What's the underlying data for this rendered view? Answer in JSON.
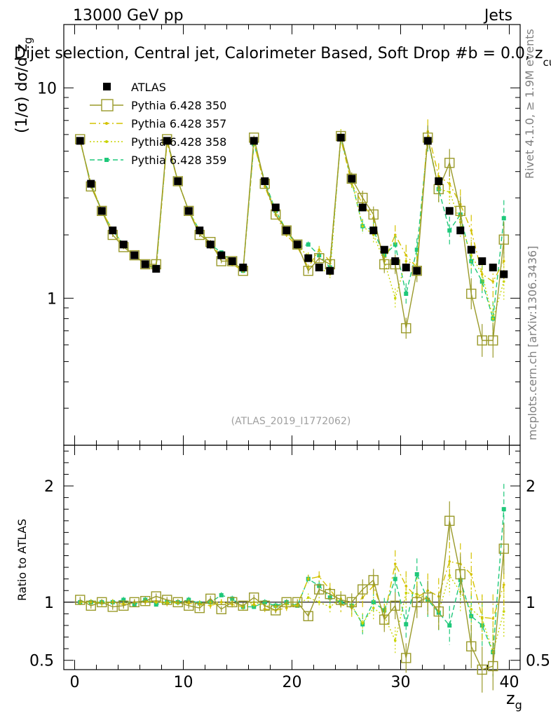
{
  "header": {
    "beam": "13000 GeV pp",
    "category": "Jets",
    "title": "Dijet selection, Central jet, Calorimeter Based, Soft Drop #b = 0.0, z",
    "title_sub": "cut",
    "title_tail": " =",
    "side_rivet": "Rivet 4.1.0, ≥ 1.9M events",
    "side_mcplots": "mcplots.cern.ch [arXiv:1306.3436]",
    "watermark": "(ATLAS_2019_I1772062)"
  },
  "axes": {
    "ylabel_main": "(1/σ) dσ/d z",
    "ylabel_main_sub": "g",
    "ylabel_ratio": "Ratio to ATLAS",
    "xlabel": "z",
    "xlabel_sub": "g"
  },
  "legend": {
    "items": [
      {
        "label": "ATLAS",
        "color": "#000000"
      },
      {
        "label": "Pythia 6.428 350",
        "color": "#9a9a2a"
      },
      {
        "label": "Pythia 6.428 357",
        "color": "#d4c200"
      },
      {
        "label": "Pythia 6.428 358",
        "color": "#c8d400"
      },
      {
        "label": "Pythia 6.428 359",
        "color": "#1ec87a"
      }
    ]
  },
  "chart_data": {
    "type": "scatter",
    "xlim": [
      -1,
      41
    ],
    "main_ylim_log": [
      0.2,
      20
    ],
    "ratio_ylim": [
      0.42,
      2.35
    ],
    "x_ticks": [
      0,
      10,
      20,
      30,
      40
    ],
    "main_y_ticks": [
      1,
      10
    ],
    "ratio_y_ticks": [
      0.5,
      1,
      2
    ],
    "x": [
      0.5,
      1.5,
      2.5,
      3.5,
      4.5,
      5.5,
      6.5,
      7.5,
      8.5,
      9.5,
      10.5,
      11.5,
      12.5,
      13.5,
      14.5,
      15.5,
      16.5,
      17.5,
      18.5,
      19.5,
      20.5,
      21.5,
      22.5,
      23.5,
      24.5,
      25.5,
      26.5,
      27.5,
      28.5,
      29.5,
      30.5,
      31.5,
      32.5,
      33.5,
      34.5,
      35.5,
      36.5,
      37.5,
      38.5,
      39.5
    ],
    "series": [
      {
        "name": "ATLAS",
        "color": "#000000",
        "values": [
          5.6,
          3.5,
          2.6,
          2.1,
          1.8,
          1.6,
          1.45,
          1.38,
          5.6,
          3.6,
          2.6,
          2.1,
          1.8,
          1.6,
          1.5,
          1.4,
          5.6,
          3.6,
          2.7,
          2.1,
          1.8,
          1.55,
          1.4,
          1.35,
          5.8,
          3.7,
          2.7,
          2.1,
          1.7,
          1.5,
          1.4,
          1.35,
          5.6,
          3.6,
          2.6,
          2.1,
          1.7,
          1.5,
          1.4,
          1.3
        ]
      },
      {
        "name": "Pythia 6.428 350",
        "color": "#9a9a2a",
        "values": [
          5.7,
          3.4,
          2.6,
          2.0,
          1.75,
          1.6,
          1.45,
          1.45,
          5.7,
          3.6,
          2.6,
          2.0,
          1.85,
          1.5,
          1.5,
          1.35,
          5.8,
          3.5,
          2.5,
          2.1,
          1.8,
          1.35,
          1.55,
          1.45,
          5.9,
          3.7,
          3.0,
          2.5,
          1.45,
          1.45,
          0.72,
          1.35,
          5.8,
          3.3,
          4.4,
          2.6,
          1.05,
          0.63,
          0.63,
          1.9
        ],
        "ratio": [
          1.02,
          0.97,
          1.0,
          0.96,
          0.97,
          1.0,
          1.01,
          1.05,
          1.02,
          1.0,
          0.97,
          0.95,
          1.03,
          0.94,
          1.0,
          0.97,
          1.04,
          0.97,
          0.93,
          1.0,
          1.0,
          0.88,
          1.11,
          1.07,
          1.02,
          1.0,
          1.11,
          1.19,
          0.85,
          0.97,
          0.52,
          1.0,
          1.04,
          0.92,
          1.7,
          1.24,
          0.62,
          0.42,
          0.45,
          1.46
        ]
      },
      {
        "name": "Pythia 6.428 357",
        "color": "#d4c200",
        "values": [
          5.6,
          3.5,
          2.6,
          2.1,
          1.75,
          1.6,
          1.45,
          1.4,
          5.5,
          3.6,
          2.6,
          2.05,
          1.75,
          1.6,
          1.45,
          1.35,
          5.5,
          3.4,
          2.5,
          2.0,
          1.75,
          1.4,
          1.7,
          1.5,
          5.7,
          3.5,
          2.8,
          2.4,
          1.5,
          2.0,
          1.6,
          1.4,
          6.2,
          3.8,
          3.5,
          2.8,
          2.1,
          1.3,
          1.2,
          1.5
        ],
        "ratio": [
          1.0,
          1.0,
          0.99,
          1.0,
          0.98,
          1.0,
          1.0,
          1.01,
          0.99,
          1.0,
          0.99,
          0.98,
          0.97,
          1.0,
          0.98,
          0.96,
          0.98,
          0.94,
          0.93,
          0.95,
          0.98,
          1.2,
          1.22,
          1.11,
          0.98,
          0.95,
          1.04,
          1.14,
          0.88,
          1.33,
          1.14,
          1.04,
          1.1,
          1.05,
          1.35,
          1.33,
          1.24,
          0.87,
          0.86,
          1.15
        ]
      },
      {
        "name": "Pythia 6.428 358",
        "color": "#c8d400",
        "values": [
          5.6,
          3.5,
          2.6,
          2.1,
          1.8,
          1.6,
          1.45,
          1.4,
          5.6,
          3.6,
          2.6,
          2.1,
          1.8,
          1.6,
          1.5,
          1.35,
          5.6,
          3.5,
          2.6,
          2.1,
          1.75,
          1.6,
          1.4,
          1.3,
          6.0,
          3.6,
          2.2,
          2.0,
          1.5,
          1.0,
          1.5,
          1.45,
          5.8,
          3.3,
          3.2,
          2.3,
          1.6,
          1.3,
          0.8,
          1.2
        ],
        "ratio": [
          1.0,
          1.0,
          1.0,
          1.0,
          0.99,
          1.0,
          1.01,
          1.0,
          1.0,
          0.99,
          1.0,
          0.99,
          1.0,
          1.0,
          1.0,
          0.97,
          1.0,
          0.97,
          0.96,
          0.98,
          0.97,
          1.04,
          1.0,
          0.96,
          1.03,
          0.97,
          0.82,
          0.95,
          0.88,
          0.67,
          1.08,
          1.07,
          1.03,
          0.92,
          1.23,
          1.09,
          0.94,
          0.86,
          0.57,
          0.92
        ]
      },
      {
        "name": "Pythia 6.428 359",
        "color": "#1ec87a",
        "values": [
          5.6,
          3.5,
          2.6,
          2.1,
          1.8,
          1.6,
          1.45,
          1.38,
          5.6,
          3.6,
          2.6,
          2.1,
          1.8,
          1.65,
          1.5,
          1.35,
          5.4,
          3.6,
          2.6,
          2.1,
          1.75,
          1.8,
          1.6,
          1.4,
          5.8,
          3.6,
          2.2,
          2.1,
          1.6,
          1.8,
          1.05,
          1.7,
          5.7,
          3.3,
          2.1,
          2.5,
          1.5,
          1.2,
          0.8,
          2.4
        ],
        "ratio": [
          1.0,
          1.0,
          1.0,
          1.0,
          1.02,
          0.98,
          1.02,
          0.98,
          1.0,
          1.0,
          1.02,
          0.99,
          1.0,
          1.06,
          1.03,
          0.96,
          0.96,
          1.0,
          0.97,
          1.0,
          0.97,
          1.2,
          1.14,
          1.04,
          1.0,
          0.97,
          0.81,
          1.0,
          0.93,
          1.2,
          0.81,
          1.24,
          1.02,
          0.91,
          0.8,
          1.19,
          0.88,
          0.8,
          0.57,
          1.8
        ]
      }
    ]
  }
}
